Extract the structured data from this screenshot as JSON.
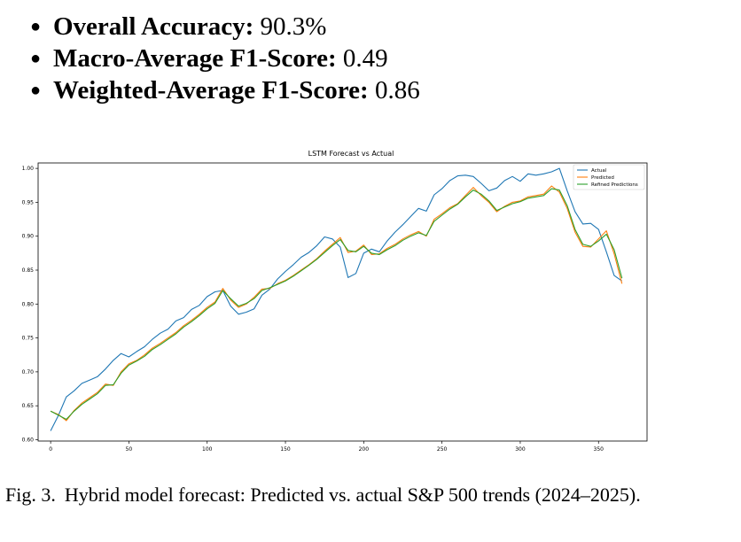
{
  "bullets": [
    {
      "label": "Overall Accuracy:",
      "value": "90.3%"
    },
    {
      "label": "Macro-Average F1-Score:",
      "value": "0.49"
    },
    {
      "label": "Weighted-Average F1-Score:",
      "value": "0.86"
    }
  ],
  "caption": {
    "prefix": "Fig. 3.",
    "text": "Hybrid model forecast: Predicted vs. actual S&P 500 trends (2024–2025)."
  },
  "chart_data": {
    "type": "line",
    "title": "LSTM Forecast vs Actual",
    "xlabel": "",
    "ylabel": "",
    "xlim": [
      -8,
      381
    ],
    "ylim": [
      0.598,
      1.008
    ],
    "xticks": [
      0,
      50,
      100,
      150,
      200,
      250,
      300,
      350
    ],
    "yticks": [
      0.6,
      0.65,
      0.7,
      0.75,
      0.8,
      0.85,
      0.9,
      0.95,
      1.0
    ],
    "grid": false,
    "legend_position": "top-right",
    "series": [
      {
        "name": "Actual",
        "color": "#1f77b4",
        "x": [
          0,
          5,
          10,
          15,
          20,
          25,
          30,
          35,
          40,
          45,
          50,
          55,
          60,
          65,
          70,
          75,
          80,
          85,
          90,
          95,
          100,
          105,
          110,
          115,
          120,
          125,
          130,
          135,
          140,
          145,
          150,
          155,
          160,
          165,
          170,
          175,
          180,
          185,
          190,
          195,
          200,
          205,
          210,
          215,
          220,
          225,
          230,
          235,
          240,
          245,
          250,
          255,
          260,
          265,
          270,
          275,
          280,
          285,
          290,
          295,
          300,
          305,
          310,
          315,
          320,
          325,
          330,
          335,
          340,
          345,
          350,
          355,
          360,
          365
        ],
        "y": [
          0.613,
          0.636,
          0.663,
          0.672,
          0.683,
          0.688,
          0.693,
          0.704,
          0.717,
          0.727,
          0.722,
          0.73,
          0.737,
          0.748,
          0.757,
          0.763,
          0.775,
          0.78,
          0.792,
          0.798,
          0.811,
          0.818,
          0.82,
          0.797,
          0.785,
          0.788,
          0.793,
          0.813,
          0.822,
          0.837,
          0.848,
          0.858,
          0.869,
          0.876,
          0.886,
          0.899,
          0.896,
          0.884,
          0.839,
          0.845,
          0.875,
          0.881,
          0.877,
          0.893,
          0.906,
          0.917,
          0.929,
          0.941,
          0.937,
          0.961,
          0.97,
          0.982,
          0.989,
          0.99,
          0.988,
          0.978,
          0.967,
          0.971,
          0.982,
          0.988,
          0.981,
          0.992,
          0.99,
          0.992,
          0.995,
          1.0,
          0.967,
          0.936,
          0.918,
          0.919,
          0.91,
          0.877,
          0.842,
          0.834
        ]
      },
      {
        "name": "Predicted",
        "color": "#ff7f0e",
        "x": [
          0,
          5,
          10,
          15,
          20,
          25,
          30,
          35,
          40,
          45,
          50,
          55,
          60,
          65,
          70,
          75,
          80,
          85,
          90,
          95,
          100,
          105,
          110,
          115,
          120,
          125,
          130,
          135,
          140,
          145,
          150,
          155,
          160,
          165,
          170,
          175,
          180,
          185,
          190,
          195,
          200,
          205,
          210,
          215,
          220,
          225,
          230,
          235,
          240,
          245,
          250,
          255,
          260,
          265,
          270,
          275,
          280,
          285,
          290,
          295,
          300,
          305,
          310,
          315,
          320,
          325,
          330,
          335,
          340,
          345,
          350,
          355,
          360,
          365
        ],
        "y": [
          0.642,
          0.637,
          0.628,
          0.643,
          0.654,
          0.662,
          0.67,
          0.682,
          0.68,
          0.7,
          0.712,
          0.717,
          0.725,
          0.735,
          0.742,
          0.75,
          0.758,
          0.768,
          0.776,
          0.785,
          0.795,
          0.803,
          0.823,
          0.806,
          0.795,
          0.8,
          0.81,
          0.822,
          0.823,
          0.83,
          0.835,
          0.842,
          0.85,
          0.858,
          0.867,
          0.878,
          0.888,
          0.898,
          0.876,
          0.878,
          0.887,
          0.873,
          0.874,
          0.882,
          0.888,
          0.896,
          0.902,
          0.907,
          0.9,
          0.925,
          0.933,
          0.942,
          0.948,
          0.96,
          0.972,
          0.96,
          0.95,
          0.936,
          0.944,
          0.95,
          0.952,
          0.958,
          0.96,
          0.962,
          0.974,
          0.965,
          0.941,
          0.906,
          0.885,
          0.884,
          0.896,
          0.908,
          0.874,
          0.83
        ]
      },
      {
        "name": "Refined Predictions",
        "color": "#2ca02c",
        "x": [
          0,
          5,
          10,
          15,
          20,
          25,
          30,
          35,
          40,
          45,
          50,
          55,
          60,
          65,
          70,
          75,
          80,
          85,
          90,
          95,
          100,
          105,
          110,
          115,
          120,
          125,
          130,
          135,
          140,
          145,
          150,
          155,
          160,
          165,
          170,
          175,
          180,
          185,
          190,
          195,
          200,
          205,
          210,
          215,
          220,
          225,
          230,
          235,
          240,
          245,
          250,
          255,
          260,
          265,
          270,
          275,
          280,
          285,
          290,
          295,
          300,
          305,
          310,
          315,
          320,
          325,
          330,
          335,
          340,
          345,
          350,
          355,
          360,
          365
        ],
        "y": [
          0.642,
          0.636,
          0.63,
          0.642,
          0.652,
          0.66,
          0.668,
          0.68,
          0.681,
          0.698,
          0.71,
          0.716,
          0.723,
          0.733,
          0.74,
          0.748,
          0.756,
          0.766,
          0.774,
          0.783,
          0.793,
          0.801,
          0.82,
          0.808,
          0.797,
          0.801,
          0.808,
          0.82,
          0.824,
          0.829,
          0.834,
          0.841,
          0.849,
          0.857,
          0.866,
          0.876,
          0.886,
          0.895,
          0.879,
          0.877,
          0.885,
          0.875,
          0.873,
          0.88,
          0.886,
          0.894,
          0.9,
          0.905,
          0.901,
          0.922,
          0.931,
          0.94,
          0.947,
          0.958,
          0.968,
          0.962,
          0.952,
          0.938,
          0.943,
          0.948,
          0.951,
          0.956,
          0.958,
          0.96,
          0.97,
          0.968,
          0.945,
          0.91,
          0.888,
          0.885,
          0.893,
          0.903,
          0.88,
          0.838
        ]
      }
    ]
  }
}
